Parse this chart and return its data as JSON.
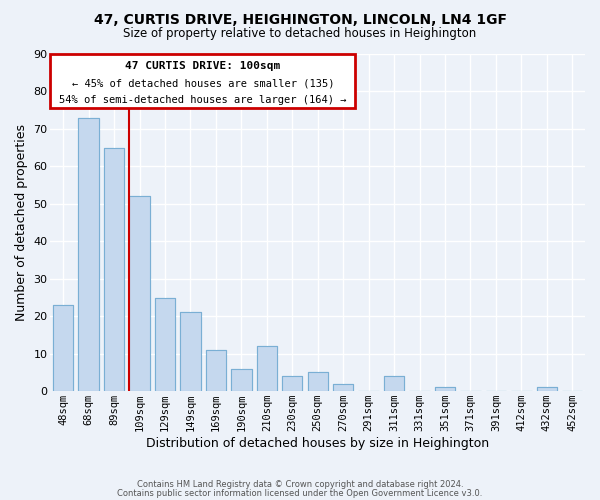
{
  "title": "47, CURTIS DRIVE, HEIGHINGTON, LINCOLN, LN4 1GF",
  "subtitle": "Size of property relative to detached houses in Heighington",
  "xlabel": "Distribution of detached houses by size in Heighington",
  "ylabel": "Number of detached properties",
  "bar_color": "#c5d8ee",
  "bar_edge_color": "#7aafd4",
  "background_color": "#edf2f9",
  "grid_color": "#ffffff",
  "categories": [
    "48sqm",
    "68sqm",
    "89sqm",
    "109sqm",
    "129sqm",
    "149sqm",
    "169sqm",
    "190sqm",
    "210sqm",
    "230sqm",
    "250sqm",
    "270sqm",
    "291sqm",
    "311sqm",
    "331sqm",
    "351sqm",
    "371sqm",
    "391sqm",
    "412sqm",
    "432sqm",
    "452sqm"
  ],
  "values": [
    23,
    73,
    65,
    52,
    25,
    21,
    11,
    6,
    12,
    4,
    5,
    2,
    0,
    4,
    0,
    1,
    0,
    0,
    0,
    1,
    0
  ],
  "ylim": [
    0,
    90
  ],
  "yticks": [
    0,
    10,
    20,
    30,
    40,
    50,
    60,
    70,
    80,
    90
  ],
  "marker_bin_index": 3,
  "marker_color": "#cc0000",
  "annotation_title": "47 CURTIS DRIVE: 100sqm",
  "annotation_line1": "← 45% of detached houses are smaller (135)",
  "annotation_line2": "54% of semi-detached houses are larger (164) →",
  "annotation_box_color": "#cc0000",
  "footer_line1": "Contains HM Land Registry data © Crown copyright and database right 2024.",
  "footer_line2": "Contains public sector information licensed under the Open Government Licence v3.0.",
  "figsize": [
    6.0,
    5.0
  ],
  "dpi": 100
}
